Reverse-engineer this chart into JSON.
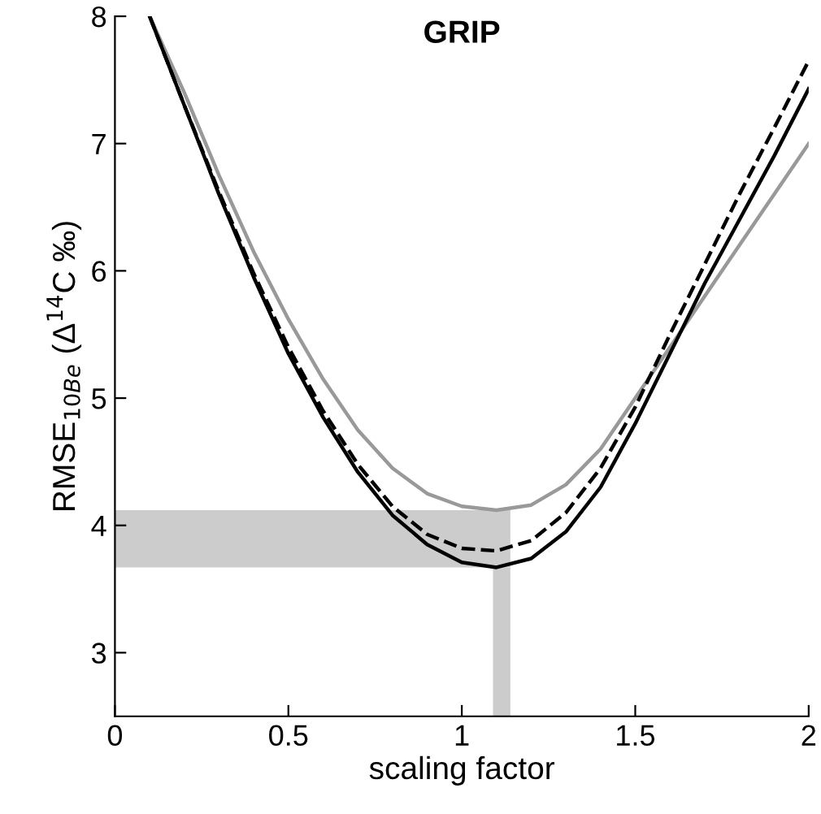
{
  "chart_data": {
    "type": "line",
    "title": "GRIP",
    "xlabel": "scaling factor",
    "ylabel": "RMSE$_{10Be}$ (Δ$^{14}$C ‰)",
    "xlim": [
      0,
      2
    ],
    "ylim": [
      2.5,
      8
    ],
    "xticks": [
      0,
      0.5,
      1,
      1.5,
      2
    ],
    "yticks": [
      3,
      4,
      5,
      6,
      7,
      8
    ],
    "grid": false,
    "legend": false,
    "marker": "none",
    "x": [
      0.1,
      0.2,
      0.3,
      0.4,
      0.5,
      0.6,
      0.7,
      0.8,
      0.9,
      1.0,
      1.1,
      1.2,
      1.3,
      1.4,
      1.5,
      1.6,
      1.7,
      1.8,
      1.9,
      2.0
    ],
    "series": [
      {
        "color": "#999999",
        "line_style": "solid",
        "values": [
          8.0,
          7.4,
          6.75,
          6.15,
          5.62,
          5.15,
          4.75,
          4.45,
          4.25,
          4.15,
          4.12,
          4.16,
          4.32,
          4.6,
          5.0,
          5.4,
          5.8,
          6.2,
          6.6,
          7.0
        ]
      },
      {
        "color": "#000000",
        "line_style": "solid",
        "values": [
          8.0,
          7.3,
          6.6,
          5.95,
          5.35,
          4.85,
          4.42,
          4.08,
          3.85,
          3.71,
          3.67,
          3.74,
          3.95,
          4.3,
          4.8,
          5.35,
          5.9,
          6.4,
          6.9,
          7.43
        ]
      },
      {
        "color": "#000000",
        "line_style": "dashed",
        "values": [
          8.0,
          7.3,
          6.62,
          5.98,
          5.4,
          4.9,
          4.48,
          4.15,
          3.93,
          3.82,
          3.8,
          3.88,
          4.1,
          4.45,
          4.93,
          5.5,
          6.05,
          6.6,
          7.12,
          7.65
        ]
      }
    ],
    "bands": [
      {
        "axis": "y",
        "from": 3.67,
        "to": 4.12,
        "color": "#cccccc"
      },
      {
        "axis": "x",
        "from": 1.09,
        "to": 1.14,
        "color": "#cccccc"
      }
    ]
  }
}
